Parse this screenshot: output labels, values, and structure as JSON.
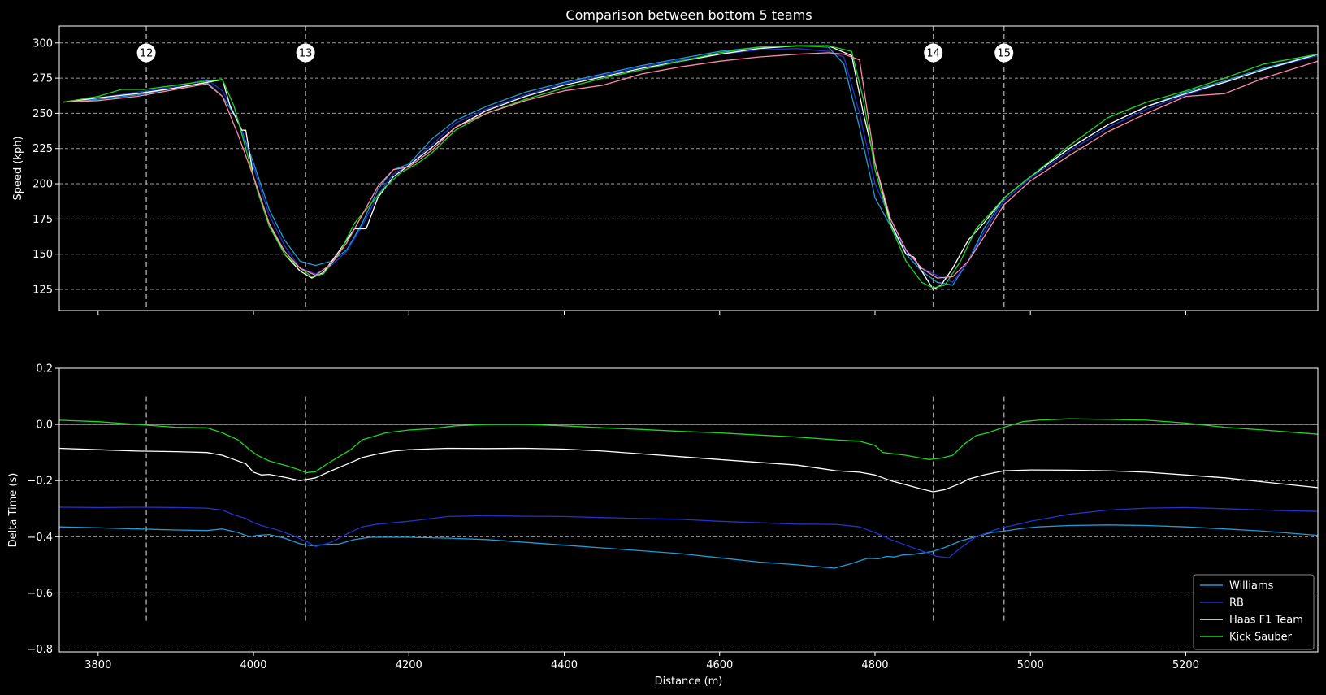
{
  "chart_data": [
    {
      "type": "line",
      "title": "Comparison between bottom 5 teams",
      "xlabel": "",
      "ylabel": "Speed (kph)",
      "xlim": [
        3750,
        5370
      ],
      "ylim": [
        110,
        312
      ],
      "yticks": [
        125,
        150,
        175,
        200,
        225,
        250,
        275,
        300
      ],
      "grid": true,
      "corners": [
        {
          "label": "12",
          "x": 3862
        },
        {
          "label": "13",
          "x": 4067
        },
        {
          "label": "14",
          "x": 4875
        },
        {
          "label": "15",
          "x": 4966
        }
      ],
      "series": [
        {
          "name": "Williams",
          "color": "#1f9bd6",
          "x": [
            3755,
            3800,
            3850,
            3900,
            3940,
            3960,
            3980,
            4000,
            4020,
            4040,
            4060,
            4080,
            4100,
            4120,
            4140,
            4160,
            4180,
            4200,
            4230,
            4260,
            4300,
            4350,
            4400,
            4450,
            4500,
            4550,
            4600,
            4650,
            4700,
            4740,
            4760,
            4780,
            4800,
            4820,
            4840,
            4860,
            4880,
            4900,
            4920,
            4940,
            4966,
            5000,
            5050,
            5100,
            5150,
            5200,
            5250,
            5300,
            5370
          ],
          "y": [
            258,
            260,
            263,
            268,
            272,
            262,
            245,
            215,
            182,
            160,
            145,
            142,
            145,
            153,
            172,
            196,
            210,
            214,
            232,
            245,
            255,
            265,
            272,
            278,
            284,
            289,
            294,
            297,
            298,
            297,
            285,
            240,
            190,
            170,
            150,
            138,
            130,
            128,
            145,
            168,
            190,
            205,
            225,
            242,
            255,
            265,
            273,
            282,
            292
          ]
        },
        {
          "name": "RB",
          "color": "#2233cc",
          "x": [
            3755,
            3800,
            3850,
            3900,
            3940,
            3960,
            3980,
            4000,
            4020,
            4040,
            4060,
            4080,
            4100,
            4120,
            4140,
            4160,
            4180,
            4200,
            4230,
            4260,
            4300,
            4350,
            4400,
            4450,
            4500,
            4550,
            4600,
            4650,
            4700,
            4740,
            4760,
            4780,
            4800,
            4820,
            4840,
            4860,
            4880,
            4900,
            4920,
            4940,
            4966,
            5000,
            5050,
            5100,
            5150,
            5200,
            5250,
            5300,
            5370
          ],
          "y": [
            258,
            261,
            265,
            269,
            274,
            266,
            245,
            212,
            178,
            156,
            140,
            136,
            142,
            152,
            170,
            192,
            207,
            213,
            228,
            243,
            253,
            263,
            271,
            277,
            283,
            288,
            292,
            295,
            296,
            294,
            290,
            250,
            200,
            175,
            152,
            140,
            135,
            130,
            145,
            165,
            188,
            204,
            223,
            240,
            253,
            263,
            272,
            281,
            291
          ]
        },
        {
          "name": "Haas F1 Team",
          "color": "#ffffff",
          "x": [
            3755,
            3800,
            3850,
            3900,
            3940,
            3960,
            3970,
            3985,
            3990,
            4000,
            4020,
            4040,
            4060,
            4075,
            4090,
            4110,
            4130,
            4145,
            4160,
            4180,
            4200,
            4230,
            4260,
            4300,
            4350,
            4400,
            4450,
            4500,
            4550,
            4600,
            4650,
            4700,
            4740,
            4770,
            4785,
            4800,
            4820,
            4840,
            4850,
            4860,
            4875,
            4885,
            4900,
            4920,
            4940,
            4966,
            5000,
            5050,
            5100,
            5150,
            5200,
            5250,
            5300,
            5370
          ],
          "y": [
            258,
            261,
            264,
            268,
            272,
            274,
            255,
            238,
            238,
            205,
            172,
            150,
            138,
            133,
            137,
            152,
            168,
            168,
            190,
            205,
            213,
            226,
            240,
            252,
            262,
            270,
            276,
            282,
            287,
            292,
            296,
            298,
            298,
            291,
            250,
            215,
            172,
            150,
            148,
            138,
            125,
            128,
            140,
            160,
            172,
            190,
            205,
            225,
            242,
            255,
            264,
            272,
            281,
            292
          ]
        },
        {
          "name": "Kick Sauber",
          "color": "#22d422",
          "x": [
            3755,
            3800,
            3830,
            3860,
            3900,
            3940,
            3960,
            3975,
            3990,
            4005,
            4020,
            4040,
            4060,
            4075,
            4090,
            4110,
            4130,
            4150,
            4170,
            4190,
            4210,
            4230,
            4260,
            4300,
            4350,
            4400,
            4450,
            4500,
            4550,
            4600,
            4650,
            4700,
            4740,
            4770,
            4785,
            4800,
            4820,
            4840,
            4860,
            4875,
            4890,
            4910,
            4930,
            4950,
            4966,
            5000,
            5050,
            5100,
            5150,
            5200,
            5250,
            5300,
            5370
          ],
          "y": [
            258,
            262,
            267,
            267,
            270,
            273,
            274,
            255,
            225,
            195,
            170,
            150,
            140,
            134,
            136,
            150,
            172,
            185,
            198,
            208,
            214,
            222,
            238,
            250,
            260,
            268,
            275,
            281,
            287,
            293,
            297,
            298,
            298,
            294,
            260,
            210,
            170,
            145,
            130,
            126,
            128,
            145,
            168,
            180,
            190,
            205,
            227,
            247,
            258,
            266,
            275,
            285,
            292
          ]
        },
        {
          "name": "",
          "color": "#ff88aa",
          "x": [
            3755,
            3800,
            3850,
            3900,
            3940,
            3960,
            3980,
            4000,
            4020,
            4040,
            4060,
            4080,
            4100,
            4120,
            4140,
            4160,
            4180,
            4200,
            4230,
            4260,
            4300,
            4350,
            4400,
            4450,
            4500,
            4550,
            4600,
            4650,
            4700,
            4740,
            4760,
            4780,
            4800,
            4820,
            4840,
            4860,
            4880,
            4900,
            4920,
            4940,
            4966,
            5000,
            5050,
            5100,
            5150,
            5200,
            5250,
            5300,
            5370
          ],
          "y": [
            258,
            259,
            262,
            267,
            271,
            262,
            235,
            205,
            172,
            152,
            140,
            135,
            143,
            158,
            178,
            198,
            210,
            212,
            224,
            240,
            250,
            259,
            266,
            270,
            278,
            283,
            287,
            290,
            292,
            293,
            292,
            288,
            215,
            175,
            153,
            140,
            133,
            134,
            145,
            162,
            185,
            202,
            220,
            237,
            250,
            262,
            264,
            275,
            287
          ]
        }
      ]
    },
    {
      "type": "line",
      "title": "",
      "xlabel": "Distance (m)",
      "ylabel": "Delta Time (s)",
      "xlim": [
        3750,
        5370
      ],
      "ylim": [
        -0.81,
        0.2
      ],
      "xticks": [
        3800,
        4000,
        4200,
        4400,
        4600,
        4800,
        5000,
        5200
      ],
      "yticks": [
        -0.8,
        -0.6,
        -0.4,
        -0.2,
        0.0,
        0.2
      ],
      "grid": true,
      "legend_position": "bottom-right",
      "series": [
        {
          "name": "Williams",
          "color": "#1f9bd6",
          "x": [
            3750,
            3800,
            3850,
            3900,
            3940,
            3960,
            3980,
            3995,
            4005,
            4020,
            4040,
            4060,
            4075,
            4090,
            4110,
            4130,
            4150,
            4200,
            4250,
            4300,
            4350,
            4400,
            4450,
            4500,
            4550,
            4600,
            4650,
            4700,
            4748,
            4770,
            4790,
            4805,
            4815,
            4825,
            4835,
            4850,
            4875,
            4890,
            4910,
            4930,
            4950,
            4966,
            4990,
            5010,
            5050,
            5100,
            5150,
            5200,
            5250,
            5300,
            5370
          ],
          "y": [
            -0.365,
            -0.368,
            -0.372,
            -0.376,
            -0.378,
            -0.372,
            -0.385,
            -0.4,
            -0.395,
            -0.392,
            -0.405,
            -0.425,
            -0.432,
            -0.428,
            -0.426,
            -0.41,
            -0.402,
            -0.402,
            -0.405,
            -0.41,
            -0.42,
            -0.43,
            -0.44,
            -0.45,
            -0.46,
            -0.475,
            -0.49,
            -0.5,
            -0.512,
            -0.495,
            -0.477,
            -0.478,
            -0.47,
            -0.472,
            -0.465,
            -0.462,
            -0.452,
            -0.438,
            -0.415,
            -0.4,
            -0.385,
            -0.38,
            -0.37,
            -0.365,
            -0.36,
            -0.358,
            -0.36,
            -0.365,
            -0.372,
            -0.38,
            -0.395
          ]
        },
        {
          "name": "RB",
          "color": "#2233cc",
          "x": [
            3750,
            3800,
            3850,
            3900,
            3940,
            3960,
            3975,
            3990,
            4000,
            4010,
            4030,
            4050,
            4070,
            4080,
            4100,
            4120,
            4140,
            4160,
            4200,
            4250,
            4300,
            4350,
            4400,
            4450,
            4500,
            4550,
            4600,
            4650,
            4700,
            4750,
            4780,
            4800,
            4820,
            4840,
            4860,
            4880,
            4895,
            4910,
            4930,
            4960,
            4990,
            5000,
            5050,
            5100,
            5150,
            5200,
            5250,
            5300,
            5370
          ],
          "y": [
            -0.295,
            -0.296,
            -0.295,
            -0.296,
            -0.298,
            -0.305,
            -0.322,
            -0.335,
            -0.35,
            -0.36,
            -0.375,
            -0.395,
            -0.42,
            -0.435,
            -0.42,
            -0.39,
            -0.365,
            -0.355,
            -0.345,
            -0.328,
            -0.325,
            -0.327,
            -0.328,
            -0.332,
            -0.335,
            -0.338,
            -0.345,
            -0.35,
            -0.355,
            -0.356,
            -0.365,
            -0.385,
            -0.41,
            -0.43,
            -0.45,
            -0.47,
            -0.475,
            -0.44,
            -0.4,
            -0.37,
            -0.352,
            -0.345,
            -0.32,
            -0.305,
            -0.298,
            -0.296,
            -0.3,
            -0.305,
            -0.31
          ]
        },
        {
          "name": "Haas F1 Team",
          "color": "#ffffff",
          "x": [
            3750,
            3800,
            3850,
            3900,
            3940,
            3960,
            3975,
            3990,
            4000,
            4010,
            4020,
            4040,
            4060,
            4080,
            4100,
            4120,
            4140,
            4160,
            4180,
            4200,
            4250,
            4300,
            4350,
            4400,
            4450,
            4500,
            4550,
            4600,
            4650,
            4700,
            4750,
            4780,
            4800,
            4820,
            4840,
            4860,
            4875,
            4890,
            4910,
            4920,
            4940,
            4966,
            5000,
            5050,
            5100,
            5150,
            5200,
            5250,
            5300,
            5370
          ],
          "y": [
            -0.085,
            -0.09,
            -0.095,
            -0.097,
            -0.1,
            -0.11,
            -0.125,
            -0.14,
            -0.17,
            -0.18,
            -0.178,
            -0.188,
            -0.2,
            -0.19,
            -0.165,
            -0.142,
            -0.118,
            -0.105,
            -0.095,
            -0.09,
            -0.085,
            -0.086,
            -0.085,
            -0.088,
            -0.095,
            -0.105,
            -0.115,
            -0.125,
            -0.135,
            -0.145,
            -0.165,
            -0.17,
            -0.18,
            -0.2,
            -0.215,
            -0.23,
            -0.24,
            -0.232,
            -0.21,
            -0.195,
            -0.18,
            -0.165,
            -0.162,
            -0.163,
            -0.165,
            -0.17,
            -0.18,
            -0.19,
            -0.205,
            -0.225
          ]
        },
        {
          "name": "Kick Sauber",
          "color": "#22d422",
          "x": [
            3750,
            3800,
            3850,
            3900,
            3940,
            3960,
            3980,
            3995,
            4005,
            4020,
            4040,
            4055,
            4068,
            4080,
            4095,
            4110,
            4125,
            4140,
            4170,
            4200,
            4230,
            4260,
            4300,
            4350,
            4400,
            4450,
            4500,
            4550,
            4600,
            4650,
            4700,
            4750,
            4780,
            4800,
            4810,
            4825,
            4840,
            4855,
            4870,
            4885,
            4900,
            4915,
            4930,
            4945,
            4966,
            4990,
            5010,
            5050,
            5100,
            5150,
            5200,
            5250,
            5300,
            5370
          ],
          "y": [
            0.015,
            0.01,
            0.0,
            -0.01,
            -0.012,
            -0.03,
            -0.055,
            -0.09,
            -0.11,
            -0.13,
            -0.145,
            -0.158,
            -0.172,
            -0.168,
            -0.14,
            -0.115,
            -0.09,
            -0.055,
            -0.03,
            -0.02,
            -0.015,
            -0.005,
            0.0,
            0.0,
            -0.005,
            -0.012,
            -0.018,
            -0.025,
            -0.03,
            -0.038,
            -0.045,
            -0.055,
            -0.06,
            -0.075,
            -0.1,
            -0.105,
            -0.11,
            -0.118,
            -0.125,
            -0.12,
            -0.11,
            -0.07,
            -0.04,
            -0.03,
            -0.01,
            0.01,
            0.015,
            0.02,
            0.018,
            0.015,
            0.005,
            -0.01,
            -0.02,
            -0.035
          ]
        }
      ]
    }
  ]
}
